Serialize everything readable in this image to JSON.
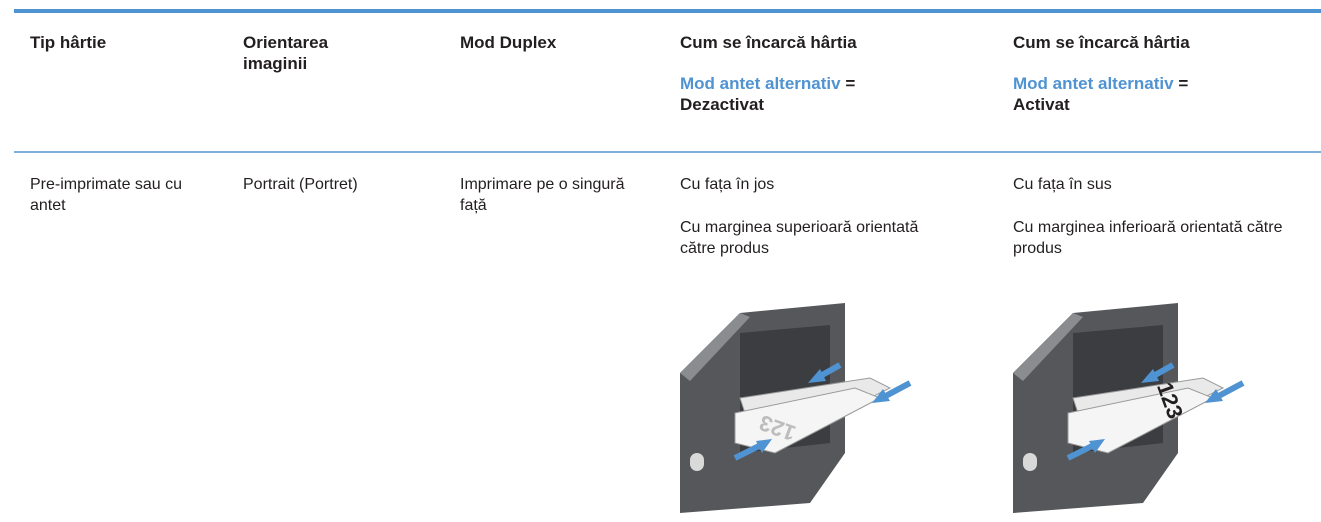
{
  "table": {
    "headers": [
      "Tip hârtie",
      "Orientarea imaginii",
      "Mod Duplex",
      {
        "title": "Cum se încarcă hârtia",
        "setting": "Mod antet alternativ",
        "equals": "=",
        "state": "Dezactivat"
      },
      {
        "title": "Cum se încarcă hârtia",
        "setting": "Mod antet alternativ",
        "equals": "=",
        "state": "Activat"
      }
    ],
    "rows": [
      [
        "Pre-imprimate sau cu antet",
        "Portrait (Portret)",
        "Imprimare pe o singură față",
        {
          "lines": [
            "Cu fața în jos",
            "Cu marginea superioară orientată către produs"
          ],
          "image_label": "123"
        },
        {
          "lines": [
            "Cu fața în sus",
            "Cu marginea inferioară orientată către produs"
          ],
          "image_label": "123"
        }
      ]
    ]
  }
}
